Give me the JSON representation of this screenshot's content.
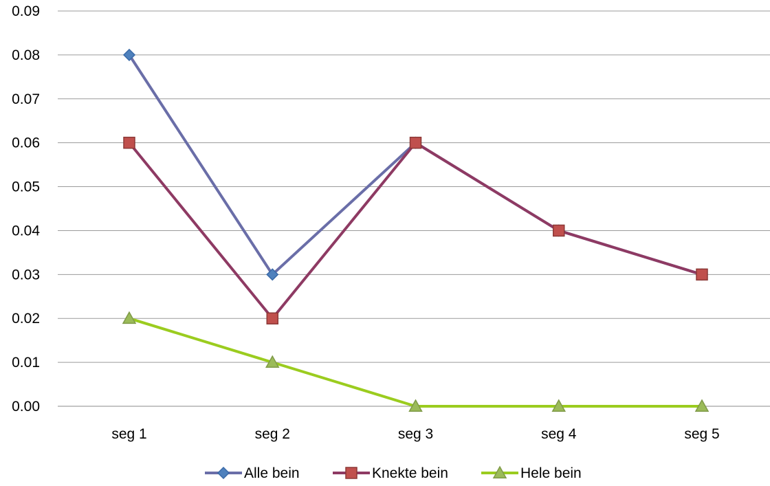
{
  "chart_data": {
    "type": "line",
    "title": "",
    "xlabel": "",
    "ylabel": "",
    "categories": [
      "seg 1",
      "seg 2",
      "seg 3",
      "seg 4",
      "seg 5"
    ],
    "ylim": [
      0,
      0.09
    ],
    "yticks": [
      "0.00",
      "0.01",
      "0.02",
      "0.03",
      "0.04",
      "0.05",
      "0.06",
      "0.07",
      "0.08",
      "0.09"
    ],
    "grid": "horizontal",
    "legend_position": "bottom",
    "series": [
      {
        "name": "Alle bein",
        "values": [
          0.08,
          0.03,
          0.06,
          0.04,
          0.03
        ],
        "line_color": "#6a6ea8",
        "marker_fill": "#4f81bd",
        "marker_stroke": "#3a6aa8",
        "marker": "diamond-icon"
      },
      {
        "name": "Knekte bein",
        "values": [
          0.06,
          0.02,
          0.06,
          0.04,
          0.03
        ],
        "line_color": "#8e3a63",
        "marker_fill": "#c0504d",
        "marker_stroke": "#8c3836",
        "marker": "square-icon"
      },
      {
        "name": "Hele bein",
        "values": [
          0.02,
          0.01,
          0.0,
          0.0,
          0.0
        ],
        "line_color": "#9bcc1f",
        "marker_fill": "#9bbb59",
        "marker_stroke": "#7f9a48",
        "marker": "triangle-icon"
      }
    ]
  }
}
